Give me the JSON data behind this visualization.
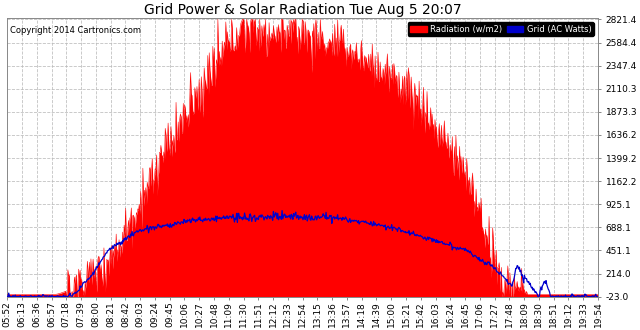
{
  "title": "Grid Power & Solar Radiation Tue Aug 5 20:07",
  "copyright": "Copyright 2014 Cartronics.com",
  "yticks": [
    -23.0,
    214.0,
    451.1,
    688.1,
    925.1,
    1162.2,
    1399.2,
    1636.2,
    1873.3,
    2110.3,
    2347.4,
    2584.4,
    2821.4
  ],
  "ymin": -23.0,
  "ymax": 2821.4,
  "background_color": "#ffffff",
  "plot_bg_color": "#ffffff",
  "grid_color": "#bbbbbb",
  "grid_style": "--",
  "radiation_color": "#ff0000",
  "grid_power_color": "#0000cc",
  "legend_radiation_label": "Radiation (w/m2)",
  "legend_grid_label": "Grid (AC Watts)",
  "title_fontsize": 10,
  "tick_fontsize": 6.5,
  "time_labels": [
    "05:52",
    "06:13",
    "06:36",
    "06:57",
    "07:18",
    "07:39",
    "08:00",
    "08:21",
    "08:42",
    "09:03",
    "09:24",
    "09:45",
    "10:06",
    "10:27",
    "10:48",
    "11:09",
    "11:30",
    "11:51",
    "12:12",
    "12:33",
    "12:54",
    "13:15",
    "13:36",
    "13:57",
    "14:18",
    "14:39",
    "15:00",
    "15:21",
    "15:42",
    "16:03",
    "16:24",
    "16:45",
    "17:06",
    "17:27",
    "17:48",
    "18:09",
    "18:30",
    "18:51",
    "19:12",
    "19:33",
    "19:54"
  ]
}
